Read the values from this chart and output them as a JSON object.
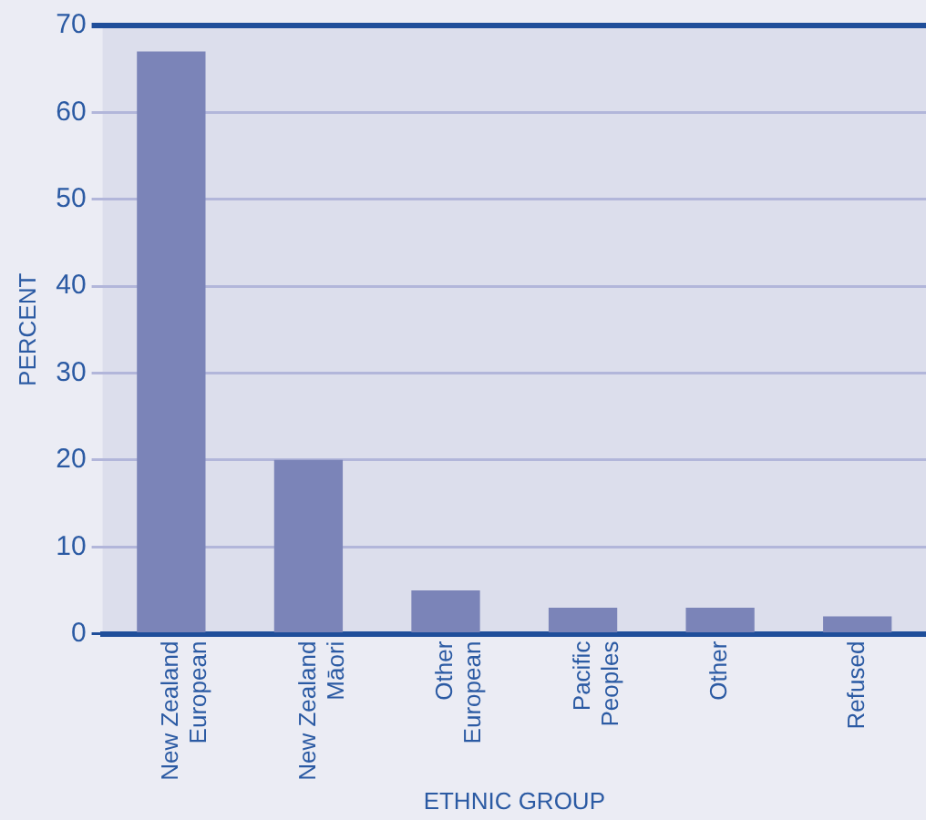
{
  "chart_data": {
    "type": "bar",
    "xlabel": "ETHNIC GROUP",
    "ylabel": "PERCENT",
    "categories": [
      "New Zealand\nEuropean",
      "New Zealand\nMāori",
      "Other\nEuropean",
      "Pacific\nPeoples",
      "Other",
      "Refused"
    ],
    "values": [
      67,
      20,
      5,
      3,
      3,
      2
    ],
    "color": "#7b84b8",
    "ylim": [
      0,
      70
    ],
    "yticks": [
      0,
      10,
      20,
      30,
      40,
      50,
      60,
      70
    ],
    "grid": "y",
    "legend": false
  }
}
